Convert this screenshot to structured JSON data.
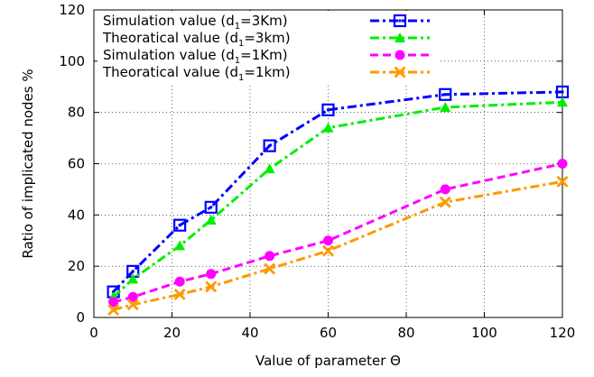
{
  "chart_data": {
    "type": "line",
    "xlabel": "Value of parameter Θ",
    "ylabel": "Ratio of implicated nodes %",
    "xlim": [
      0,
      120
    ],
    "ylim": [
      0,
      120
    ],
    "x_ticks": [
      "0",
      "20",
      "40",
      "60",
      "80",
      "100",
      "120"
    ],
    "y_ticks": [
      "0",
      "20",
      "40",
      "60",
      "80",
      "100",
      "120"
    ],
    "grid": true,
    "legend_position": "top-left",
    "series": [
      {
        "name": "Simulation value (d1=3Km)",
        "label_parts": [
          "Simulation value (d",
          "1",
          "=3Km)"
        ],
        "color": "#0000ff",
        "marker": "square",
        "dash": "dash-dot",
        "x": [
          5,
          10,
          22,
          30,
          45,
          60,
          90,
          120
        ],
        "y": [
          10,
          18,
          36,
          43,
          67,
          81,
          87,
          88
        ]
      },
      {
        "name": "Theoratical value (d1=3km)",
        "label_parts": [
          "Theoratical value (d",
          "1",
          "=3km)"
        ],
        "color": "#00ee00",
        "marker": "triangle",
        "dash": "dash-dot",
        "x": [
          5,
          10,
          22,
          30,
          45,
          60,
          90,
          120
        ],
        "y": [
          8,
          15,
          28,
          38,
          58,
          74,
          82,
          84
        ]
      },
      {
        "name": "Simulation value (d1=1Km)",
        "label_parts": [
          "Simulation value (d",
          "1",
          "=1Km)"
        ],
        "color": "#ff00ff",
        "marker": "circle",
        "dash": "dash",
        "x": [
          5,
          10,
          22,
          30,
          45,
          60,
          90,
          120
        ],
        "y": [
          6,
          8,
          14,
          17,
          24,
          30,
          50,
          60
        ]
      },
      {
        "name": "Theoratical value (d1=1km)",
        "label_parts": [
          "Theoratical value (d",
          "1",
          "=1km)"
        ],
        "color": "#ff9900",
        "marker": "cross",
        "dash": "dash-dot",
        "x": [
          5,
          10,
          22,
          30,
          45,
          60,
          90,
          120
        ],
        "y": [
          3,
          5,
          9,
          12,
          19,
          26,
          45,
          53
        ]
      }
    ]
  }
}
